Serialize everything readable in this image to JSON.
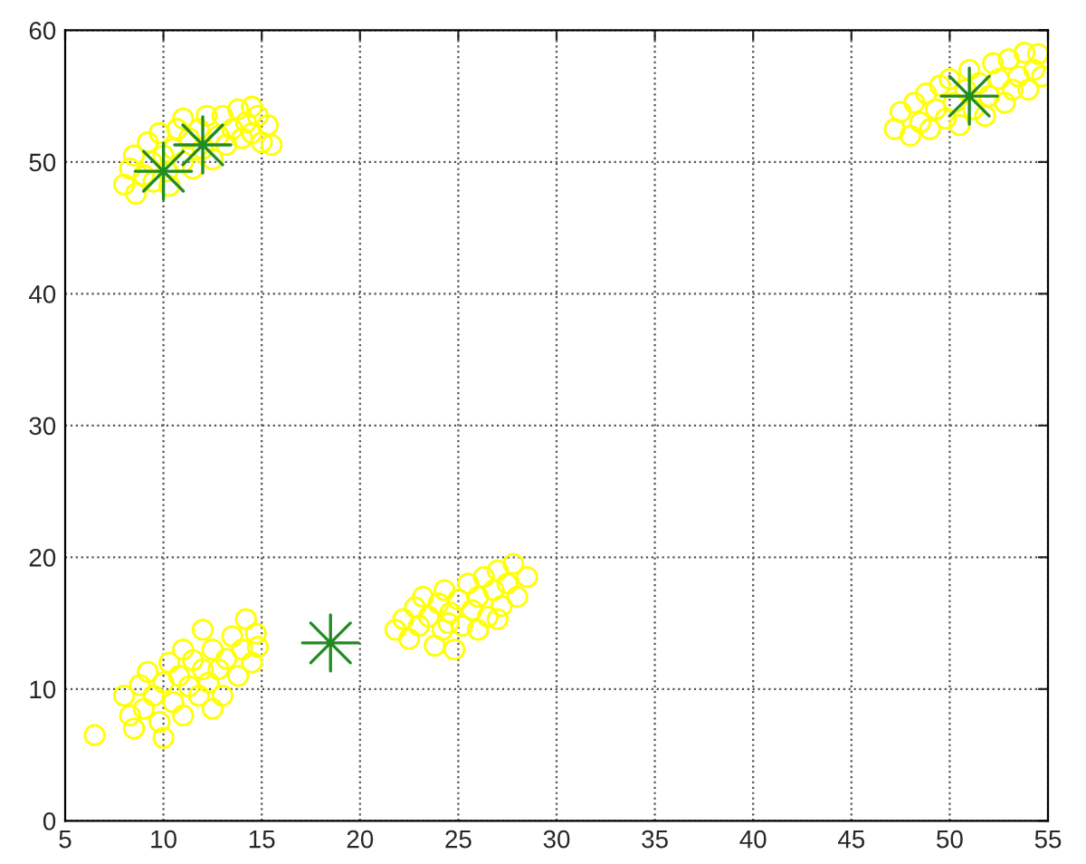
{
  "chart_data": {
    "type": "scatter",
    "xlim": [
      5,
      55
    ],
    "ylim": [
      0,
      60
    ],
    "xticks": [
      5,
      10,
      15,
      20,
      25,
      30,
      35,
      40,
      45,
      50,
      55
    ],
    "yticks": [
      0,
      10,
      20,
      30,
      40,
      50,
      60
    ],
    "grid": true,
    "legend": false,
    "series": [
      {
        "color": "#ffff00",
        "marker": "circle",
        "x": [
          8,
          8.3,
          8.5,
          8.6,
          9,
          9.2,
          9.4,
          9.5,
          9.8,
          10,
          10.2,
          10.5,
          10.7,
          11,
          11,
          11.3,
          11.5,
          11.8,
          12,
          12.2,
          12.5,
          12.8,
          13,
          13.2,
          13.5,
          13.8,
          14,
          14.2,
          14.5,
          14.8,
          15,
          15.3,
          15.5,
          14.5,
          10.3,
          6.5,
          8,
          8.3,
          8.5,
          8.8,
          9,
          9.2,
          9.5,
          9.8,
          10,
          10,
          10.3,
          10.5,
          10.8,
          11,
          11,
          11.3,
          11.5,
          11.8,
          12,
          12,
          12.3,
          12.5,
          12.8,
          13,
          13.2,
          13.5,
          13.8,
          14,
          14.2,
          14.5,
          14.7,
          14.8,
          12.5,
          21.8,
          22.2,
          22.5,
          22.8,
          23,
          23.2,
          23.5,
          23.8,
          24,
          24.2,
          24.3,
          24.6,
          24.8,
          25,
          25.2,
          25.5,
          25.7,
          26,
          26,
          26.3,
          26.5,
          26.8,
          27,
          27.2,
          27.5,
          27.8,
          28,
          28.5,
          27,
          24.5,
          47.2,
          47.5,
          48,
          48.2,
          48.5,
          48.8,
          49,
          49.3,
          49.5,
          49.8,
          50,
          50.2,
          50.5,
          50.8,
          51,
          51.2,
          51.5,
          51.8,
          52,
          52.2,
          52.5,
          52.8,
          53,
          53.2,
          53.5,
          53.8,
          54,
          54.3,
          54.7,
          54.5
        ],
        "values": [
          48.3,
          49.5,
          50.5,
          47.6,
          49,
          51.5,
          50,
          48.5,
          52.2,
          50.5,
          49.3,
          51,
          52.5,
          50,
          53.3,
          51.8,
          49.5,
          52.5,
          51,
          53.5,
          50.2,
          52,
          53.5,
          51.3,
          52.5,
          54,
          51.8,
          53,
          52.2,
          53.5,
          51.5,
          52.8,
          51.3,
          54.2,
          48.2,
          6.5,
          9.5,
          8,
          7,
          10.3,
          8.5,
          11.3,
          9.5,
          7.5,
          6.3,
          10.5,
          12,
          9,
          11,
          13,
          8,
          10.2,
          12.2,
          9.5,
          11.5,
          14.5,
          10.5,
          13,
          11.5,
          9.5,
          12.3,
          14,
          11,
          13,
          15.3,
          12,
          14.2,
          13.2,
          8.5,
          14.5,
          15.3,
          13.8,
          16.2,
          14.8,
          17,
          15.5,
          13.3,
          16.5,
          14.5,
          17.5,
          15.8,
          13,
          16.8,
          14.8,
          18,
          16,
          17,
          14.5,
          18.5,
          15.5,
          17.5,
          19,
          16.3,
          18,
          19.5,
          17,
          18.5,
          15.3,
          15,
          52.5,
          53.8,
          52,
          54.5,
          53,
          55.2,
          52.5,
          54,
          55.8,
          53.3,
          56.3,
          54.5,
          52.8,
          55.5,
          57,
          54,
          56,
          53.5,
          55,
          57.5,
          56.3,
          54.5,
          57.8,
          55.5,
          56.5,
          58.3,
          55.5,
          57,
          56.5,
          58.2
        ]
      },
      {
        "color": "#228b22",
        "marker": "star",
        "x": [
          10,
          12,
          18.5,
          51
        ],
        "values": [
          49.3,
          51.3,
          13.5,
          55
        ]
      }
    ]
  }
}
